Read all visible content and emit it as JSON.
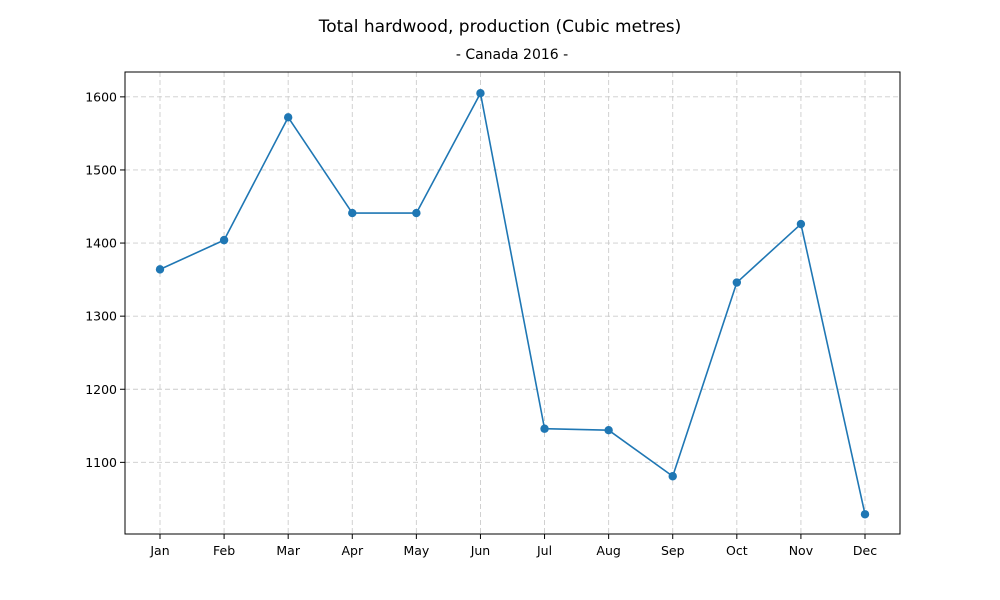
{
  "chart_data": {
    "type": "line",
    "title": "Total hardwood, production (Cubic metres)",
    "subtitle": "- Canada 2016 -",
    "xlabel": "",
    "ylabel": "",
    "categories": [
      "Jan",
      "Feb",
      "Mar",
      "Apr",
      "May",
      "Jun",
      "Jul",
      "Aug",
      "Sep",
      "Oct",
      "Nov",
      "Dec"
    ],
    "series": [
      {
        "name": "Total hardwood, production",
        "values": [
          1364,
          1404,
          1572,
          1441,
          1441,
          1605,
          1146,
          1144,
          1081,
          1346,
          1426,
          1029
        ]
      }
    ],
    "ylim": [
      1002,
      1634
    ],
    "yticks": [
      1100,
      1200,
      1300,
      1400,
      1500,
      1600
    ],
    "grid": true,
    "markers": true,
    "color": "#1f77b4"
  }
}
